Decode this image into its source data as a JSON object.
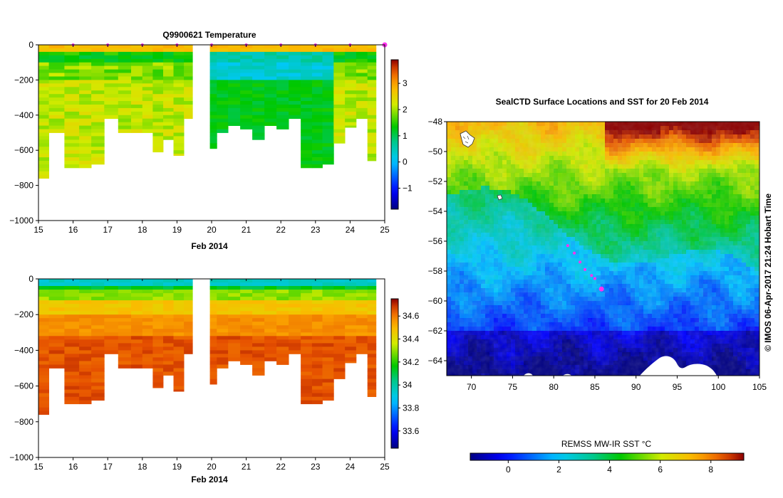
{
  "chart_data": [
    {
      "id": "temperature",
      "type": "heatmap",
      "title": "Q9900621  Temperature",
      "xlabel": "Feb 2014",
      "xlim": [
        15,
        25
      ],
      "x_ticks": [
        15,
        16,
        17,
        18,
        19,
        20,
        21,
        22,
        23,
        24,
        25
      ],
      "ylim": [
        -1000,
        0
      ],
      "y_ticks": [
        0,
        -200,
        -400,
        -600,
        -800,
        -1000
      ],
      "colorbar": {
        "range": [
          -1.8,
          3.9
        ],
        "ticks": [
          -1,
          0,
          1,
          2,
          3
        ]
      },
      "profile_times": [
        15.1,
        15.5,
        16.0,
        16.35,
        16.7,
        17.1,
        17.5,
        17.85,
        18.15,
        18.45,
        18.75,
        19.05,
        19.35,
        20.0,
        20.3,
        20.65,
        21.0,
        21.35,
        21.7,
        22.05,
        22.4,
        22.75,
        23.05,
        23.35,
        23.7,
        24.0,
        24.35,
        24.65
      ],
      "profile_depths": [
        760,
        500,
        700,
        700,
        680,
        420,
        500,
        500,
        500,
        610,
        540,
        630,
        420,
        590,
        500,
        460,
        480,
        540,
        460,
        480,
        420,
        700,
        700,
        680,
        560,
        470,
        420,
        660
      ],
      "profile_markers": [
        16,
        17,
        18,
        19,
        20,
        21,
        22,
        23,
        24,
        25
      ]
    },
    {
      "id": "salinity",
      "type": "heatmap",
      "title": "",
      "xlabel": "Feb 2014",
      "xlim": [
        15,
        25
      ],
      "x_ticks": [
        15,
        16,
        17,
        18,
        19,
        20,
        21,
        22,
        23,
        24,
        25
      ],
      "ylim": [
        -1000,
        0
      ],
      "y_ticks": [
        0,
        -200,
        -400,
        -600,
        -800,
        -1000
      ],
      "colorbar": {
        "range": [
          33.45,
          34.75
        ],
        "ticks": [
          33.6,
          33.8,
          34,
          34.2,
          34.4,
          34.6
        ]
      },
      "profile_times": [
        15.1,
        15.5,
        16.0,
        16.35,
        16.7,
        17.1,
        17.5,
        17.85,
        18.15,
        18.45,
        18.75,
        19.05,
        19.35,
        20.0,
        20.3,
        20.65,
        21.0,
        21.35,
        21.7,
        22.05,
        22.4,
        22.75,
        23.05,
        23.35,
        23.7,
        24.0,
        24.35,
        24.65
      ],
      "profile_depths": [
        760,
        500,
        700,
        700,
        680,
        420,
        500,
        500,
        500,
        610,
        540,
        630,
        420,
        590,
        500,
        460,
        480,
        540,
        460,
        480,
        420,
        700,
        700,
        680,
        560,
        470,
        420,
        660
      ]
    },
    {
      "id": "sst-map",
      "type": "heatmap",
      "title": "SealCTD Surface Locations and SST for 20 Feb 2014",
      "xlim": [
        67,
        105
      ],
      "x_ticks": [
        70,
        75,
        80,
        85,
        90,
        95,
        100,
        105
      ],
      "ylim": [
        -65,
        -48
      ],
      "y_ticks": [
        -48,
        -50,
        -52,
        -54,
        -56,
        -58,
        -60,
        -62,
        -64
      ],
      "colorbar": {
        "label": "REMSS MW-IR SST °C",
        "range": [
          -1.5,
          9.3
        ],
        "ticks": [
          0,
          2,
          4,
          6,
          8
        ]
      },
      "surface_locations": [
        {
          "lon": 81.7,
          "lat": -56.3
        },
        {
          "lon": 82.5,
          "lat": -56.8
        },
        {
          "lon": 83.2,
          "lat": -57.4
        },
        {
          "lon": 83.8,
          "lat": -57.9
        },
        {
          "lon": 84.6,
          "lat": -58.3
        },
        {
          "lon": 85.0,
          "lat": -58.5
        },
        {
          "lon": 85.8,
          "lat": -59.2
        }
      ]
    }
  ],
  "footer": {
    "credit": "© IMOS 06-Apr-2017 21:24 Hobart Time"
  },
  "colors": {
    "marker": "#ff33ee",
    "no_data": "#ffffff",
    "land": "#ffffff"
  }
}
